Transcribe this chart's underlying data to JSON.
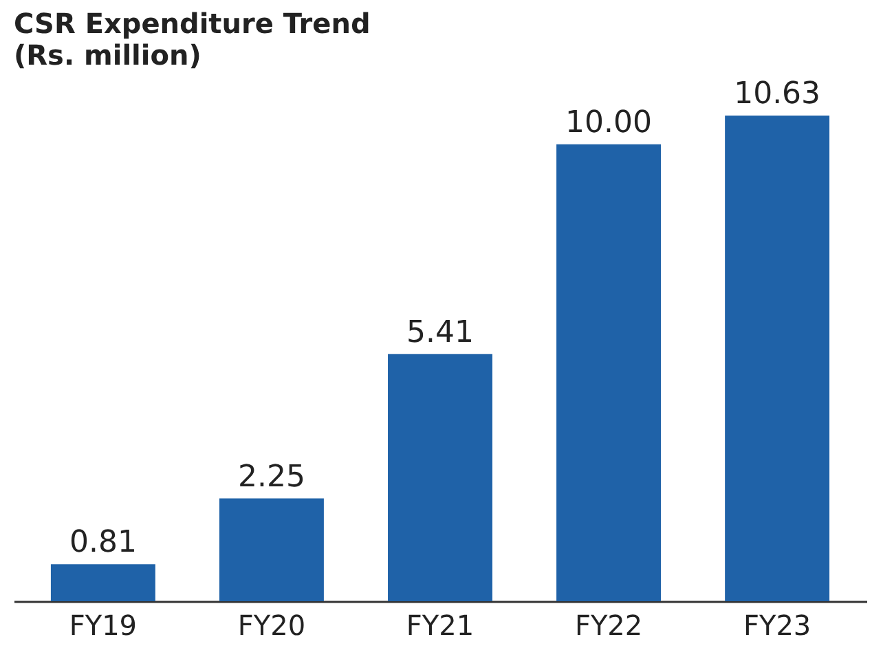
{
  "chart_data": {
    "type": "bar",
    "title": "CSR Expenditure Trend",
    "subtitle": "(Rs. million)",
    "categories": [
      "FY19",
      "FY20",
      "FY21",
      "FY22",
      "FY23"
    ],
    "values": [
      0.81,
      2.25,
      5.41,
      10.0,
      10.63
    ],
    "value_labels": [
      "0.81",
      "2.25",
      "5.41",
      "10.00",
      "10.63"
    ],
    "color": "#1f62a8"
  }
}
